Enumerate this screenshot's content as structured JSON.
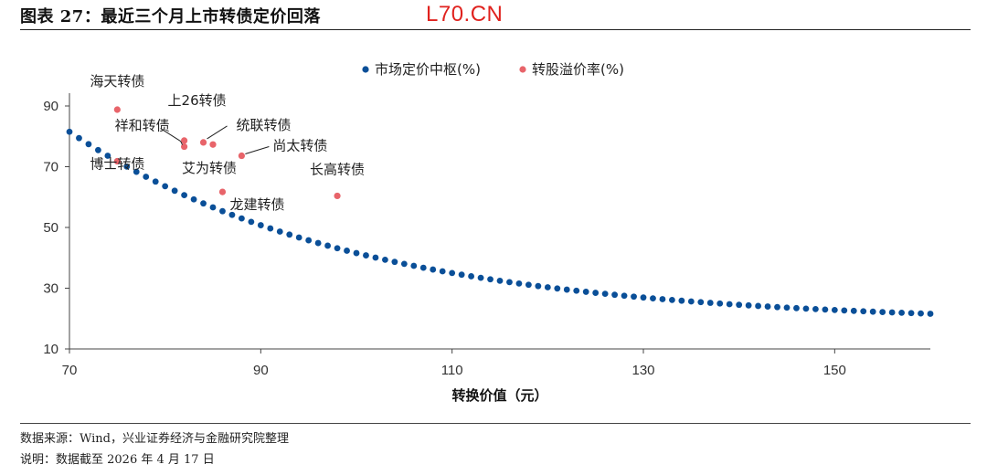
{
  "header": {
    "title": "图表 27：最近三个月上市转债定价回落",
    "watermark": "L70.CN"
  },
  "footer": {
    "source": "数据来源：Wind，兴业证券经济与金融研究院整理",
    "note": "说明：数据截至 2026 年 4 月 17 日"
  },
  "colors": {
    "series_market": "#0a4f98",
    "series_premium": "#e8646a",
    "axis": "#444444"
  },
  "chart_data": {
    "type": "scatter",
    "xlabel": "转换价值（元）",
    "ylabel": "",
    "xlim": [
      70,
      160
    ],
    "ylim": [
      10,
      90
    ],
    "xticks": [
      70,
      90,
      110,
      130,
      150
    ],
    "yticks": [
      10,
      30,
      50,
      70,
      90
    ],
    "grid": false,
    "legend_position": "top-right",
    "series": [
      {
        "name": "市场定价中枢(%)",
        "model": {
          "a": 18.5,
          "b": 63.0,
          "k": 0.0335,
          "x0": 70,
          "x_start": 70,
          "x_end": 160,
          "step": 1
        },
        "points": []
      },
      {
        "name": "转股溢价率(%)",
        "points": [
          {
            "x": 75.0,
            "y": 88.8,
            "label": "海天转债"
          },
          {
            "x": 82.0,
            "y": 78.6,
            "label": "上26转债"
          },
          {
            "x": 82.0,
            "y": 76.6,
            "label": "祥和转债"
          },
          {
            "x": 84.0,
            "y": 78.0,
            "label": "统联转债"
          },
          {
            "x": 85.0,
            "y": 77.3,
            "label": "艾为转债"
          },
          {
            "x": 88.0,
            "y": 73.6,
            "label": "尚太转债"
          },
          {
            "x": 75.0,
            "y": 71.8,
            "label": "博士转债"
          },
          {
            "x": 86.0,
            "y": 61.7,
            "label": "龙建转债"
          },
          {
            "x": 98.0,
            "y": 60.4,
            "label": "长高转债"
          }
        ]
      }
    ]
  }
}
